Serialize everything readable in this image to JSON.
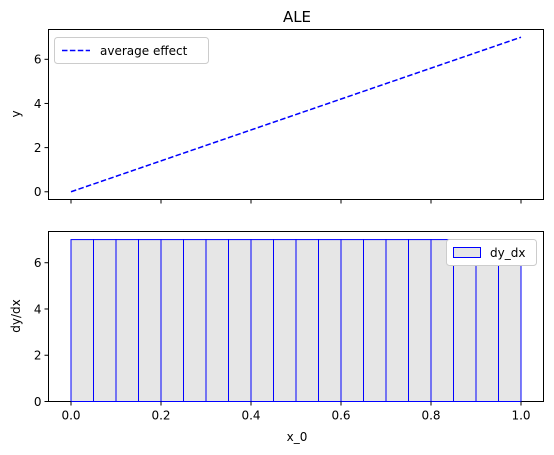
{
  "chart_data": [
    {
      "type": "line",
      "title": "ALE",
      "xlabel": "",
      "ylabel": "y",
      "xlim": [
        -0.05,
        1.05
      ],
      "ylim": [
        -0.35,
        7.35
      ],
      "yticks": [
        0,
        2,
        4,
        6
      ],
      "xticks": [
        0.0,
        0.2,
        0.4,
        0.6,
        0.8,
        1.0
      ],
      "xtick_labels_visible": false,
      "legend_position": "upper left",
      "series": [
        {
          "name": "average effect",
          "style": "dashed",
          "color": "#0000ff",
          "x": [
            0.0,
            1.0
          ],
          "y": [
            0.0,
            7.0
          ]
        }
      ]
    },
    {
      "type": "bar",
      "title": "",
      "xlabel": "x_0",
      "ylabel": "dy/dx",
      "xlim": [
        -0.05,
        1.05
      ],
      "ylim": [
        0,
        7.35
      ],
      "yticks": [
        0,
        2,
        4,
        6
      ],
      "xticks": [
        0.0,
        0.2,
        0.4,
        0.6,
        0.8,
        1.0
      ],
      "xtick_labels": [
        "0.0",
        "0.2",
        "0.4",
        "0.6",
        "0.8",
        "1.0"
      ],
      "legend_position": "upper right",
      "bar_fill": "#e6e6e6",
      "bar_edge": "#0000ff",
      "series": [
        {
          "name": "dy_dx",
          "bin_edges": [
            0.0,
            0.05,
            0.1,
            0.15,
            0.2,
            0.25,
            0.3,
            0.35,
            0.4,
            0.45,
            0.5,
            0.55,
            0.6,
            0.65,
            0.7,
            0.75,
            0.8,
            0.85,
            0.9,
            0.95,
            1.0
          ],
          "values": [
            7,
            7,
            7,
            7,
            7,
            7,
            7,
            7,
            7,
            7,
            7,
            7,
            7,
            7,
            7,
            7,
            7,
            7,
            7,
            7
          ]
        }
      ]
    }
  ]
}
